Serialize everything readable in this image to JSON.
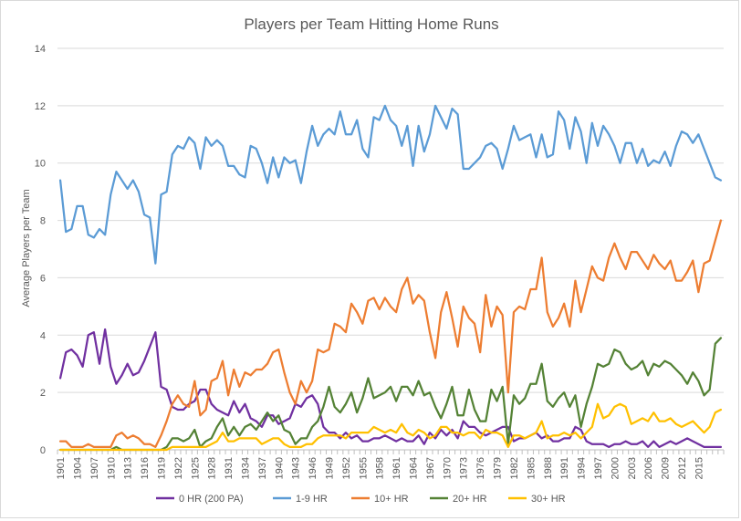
{
  "chart_data": {
    "type": "line",
    "title": "Players per Team Hitting Home Runs",
    "xlabel": "",
    "ylabel": "Average Players per Team",
    "ylim": [
      0,
      14
    ],
    "yticks": [
      0,
      2,
      4,
      6,
      8,
      10,
      12,
      14
    ],
    "x_start": 1901,
    "x_end": 2019,
    "xtick_labels": [
      "1901",
      "1904",
      "1907",
      "1910",
      "1913",
      "1916",
      "1919",
      "1922",
      "1925",
      "1928",
      "1931",
      "1934",
      "1937",
      "1940",
      "1943",
      "1946",
      "1949",
      "1952",
      "1955",
      "1958",
      "1961",
      "1964",
      "1967",
      "1970",
      "1973",
      "1976",
      "1979",
      "1982",
      "1985",
      "1988",
      "1991",
      "1994",
      "1997",
      "2000",
      "2003",
      "2006",
      "2009",
      "2012",
      "2015"
    ],
    "grid": "horizontal",
    "legend_position": "bottom",
    "series": [
      {
        "name": "0 HR (200 PA)",
        "color": "#7030a0",
        "values": [
          2.5,
          3.4,
          3.5,
          3.3,
          2.9,
          4.0,
          4.1,
          3.0,
          4.2,
          2.9,
          2.3,
          2.6,
          3.0,
          2.6,
          2.7,
          3.1,
          3.6,
          4.1,
          2.2,
          2.1,
          1.5,
          1.4,
          1.4,
          1.6,
          1.7,
          2.1,
          2.1,
          1.6,
          1.4,
          1.3,
          1.2,
          1.7,
          1.3,
          1.6,
          1.1,
          1.0,
          0.8,
          1.2,
          1.2,
          0.9,
          1.0,
          1.1,
          1.6,
          1.5,
          1.8,
          1.9,
          1.6,
          0.8,
          0.6,
          0.6,
          0.4,
          0.6,
          0.4,
          0.5,
          0.3,
          0.3,
          0.4,
          0.4,
          0.5,
          0.4,
          0.3,
          0.4,
          0.3,
          0.3,
          0.5,
          0.2,
          0.6,
          0.4,
          0.7,
          0.5,
          0.7,
          0.4,
          1.0,
          0.8,
          0.8,
          0.6,
          0.5,
          0.6,
          0.7,
          0.8,
          0.8,
          0.3,
          0.4,
          0.4,
          0.5,
          0.6,
          0.4,
          0.5,
          0.3,
          0.3,
          0.4,
          0.4,
          0.8,
          0.7,
          0.3,
          0.2,
          0.2,
          0.2,
          0.1,
          0.2,
          0.2,
          0.3,
          0.2,
          0.2,
          0.3,
          0.1,
          0.3,
          0.1,
          0.2,
          0.3,
          0.2,
          0.3,
          0.4,
          0.3,
          0.2,
          0.1,
          0.1,
          0.1,
          0.1
        ]
      },
      {
        "name": "1-9 HR",
        "color": "#5b9bd5",
        "values": [
          9.4,
          7.6,
          7.7,
          8.5,
          8.5,
          7.5,
          7.4,
          7.7,
          7.5,
          8.9,
          9.7,
          9.4,
          9.1,
          9.4,
          9.0,
          8.2,
          8.1,
          6.5,
          8.9,
          9.0,
          10.3,
          10.6,
          10.5,
          10.9,
          10.7,
          9.8,
          10.9,
          10.6,
          10.8,
          10.6,
          9.9,
          9.9,
          9.6,
          9.5,
          10.6,
          10.5,
          10.0,
          9.3,
          10.2,
          9.5,
          10.2,
          10.0,
          10.1,
          9.3,
          10.4,
          11.3,
          10.6,
          11.0,
          11.2,
          11.0,
          11.8,
          11.0,
          11.0,
          11.5,
          10.5,
          10.2,
          11.6,
          11.5,
          12.0,
          11.5,
          11.3,
          10.6,
          11.3,
          9.9,
          11.3,
          10.4,
          11.0,
          12.0,
          11.6,
          11.2,
          11.9,
          11.7,
          9.8,
          9.8,
          10.0,
          10.2,
          10.6,
          10.7,
          10.5,
          9.8,
          10.5,
          11.3,
          10.8,
          10.9,
          11.0,
          10.2,
          11.0,
          10.2,
          10.3,
          11.8,
          11.5,
          10.5,
          11.6,
          11.1,
          10.0,
          11.4,
          10.6,
          11.3,
          11.0,
          10.6,
          10.0,
          10.7,
          10.7,
          10.0,
          10.5,
          9.9,
          10.1,
          10.0,
          10.4,
          9.9,
          10.6,
          11.1,
          11.0,
          10.7,
          11.0,
          10.5,
          10.0,
          9.5,
          9.4
        ]
      },
      {
        "name": "10+ HR",
        "color": "#ed7d31",
        "values": [
          0.3,
          0.3,
          0.1,
          0.1,
          0.1,
          0.2,
          0.1,
          0.1,
          0.1,
          0.1,
          0.5,
          0.6,
          0.4,
          0.5,
          0.4,
          0.2,
          0.2,
          0.1,
          0.5,
          1.0,
          1.6,
          1.9,
          1.6,
          1.5,
          2.4,
          1.2,
          1.4,
          2.4,
          2.5,
          3.1,
          1.9,
          2.8,
          2.2,
          2.7,
          2.6,
          2.8,
          2.8,
          3.0,
          3.4,
          3.5,
          2.7,
          2.0,
          1.6,
          2.4,
          2.0,
          2.4,
          3.5,
          3.4,
          3.5,
          4.4,
          4.3,
          4.1,
          5.1,
          4.8,
          4.4,
          5.2,
          5.3,
          4.9,
          5.3,
          5.0,
          4.8,
          5.6,
          6.0,
          5.1,
          5.4,
          5.2,
          4.1,
          3.2,
          4.8,
          5.5,
          4.6,
          3.6,
          5.0,
          4.6,
          4.4,
          3.4,
          5.4,
          4.3,
          5.0,
          4.7,
          2.0,
          4.8,
          5.0,
          4.9,
          5.6,
          5.6,
          6.7,
          4.8,
          4.3,
          4.6,
          5.1,
          4.3,
          5.9,
          4.8,
          5.6,
          6.4,
          6.0,
          5.9,
          6.7,
          7.2,
          6.7,
          6.3,
          6.9,
          6.9,
          6.6,
          6.3,
          6.8,
          6.5,
          6.3,
          6.6,
          5.9,
          5.9,
          6.2,
          6.6,
          5.5,
          6.5,
          6.6,
          7.3,
          8.0
        ]
      },
      {
        "name": "20+ HR",
        "color": "#548235",
        "values": [
          0.0,
          0.0,
          0.0,
          0.0,
          0.0,
          0.0,
          0.0,
          0.0,
          0.0,
          0.0,
          0.1,
          0.0,
          0.0,
          0.0,
          0.0,
          0.0,
          0.0,
          0.0,
          0.0,
          0.1,
          0.4,
          0.4,
          0.3,
          0.4,
          0.7,
          0.1,
          0.3,
          0.4,
          0.8,
          1.1,
          0.5,
          0.8,
          0.5,
          0.8,
          0.9,
          0.7,
          1.0,
          1.3,
          1.0,
          1.2,
          0.7,
          0.6,
          0.2,
          0.4,
          0.4,
          0.8,
          1.0,
          1.5,
          2.2,
          1.5,
          1.3,
          1.6,
          2.0,
          1.3,
          1.8,
          2.5,
          1.8,
          1.9,
          2.0,
          2.2,
          1.7,
          2.2,
          2.2,
          1.9,
          2.4,
          1.9,
          2.0,
          1.5,
          1.1,
          1.6,
          2.2,
          1.2,
          1.2,
          2.1,
          1.4,
          1.0,
          1.0,
          2.1,
          1.7,
          2.2,
          0.2,
          1.9,
          1.6,
          1.8,
          2.3,
          2.3,
          3.0,
          1.7,
          1.5,
          1.8,
          2.0,
          1.5,
          1.9,
          0.8,
          1.6,
          2.2,
          3.0,
          2.9,
          3.0,
          3.5,
          3.4,
          3.0,
          2.8,
          2.9,
          3.1,
          2.6,
          3.0,
          2.9,
          3.1,
          3.0,
          2.8,
          2.6,
          2.3,
          2.7,
          2.4,
          1.9,
          2.1,
          3.7,
          3.9
        ]
      },
      {
        "name": "30+ HR",
        "color": "#ffc000",
        "values": [
          0.0,
          0.0,
          0.0,
          0.0,
          0.0,
          0.0,
          0.0,
          0.0,
          0.0,
          0.0,
          0.0,
          0.0,
          0.0,
          0.0,
          0.0,
          0.0,
          0.0,
          0.0,
          0.0,
          0.0,
          0.1,
          0.1,
          0.1,
          0.1,
          0.1,
          0.1,
          0.1,
          0.2,
          0.3,
          0.6,
          0.3,
          0.3,
          0.4,
          0.4,
          0.4,
          0.4,
          0.2,
          0.3,
          0.4,
          0.4,
          0.2,
          0.1,
          0.1,
          0.1,
          0.2,
          0.2,
          0.4,
          0.5,
          0.5,
          0.5,
          0.5,
          0.4,
          0.6,
          0.6,
          0.6,
          0.6,
          0.8,
          0.7,
          0.6,
          0.7,
          0.6,
          0.9,
          0.6,
          0.5,
          0.7,
          0.6,
          0.4,
          0.5,
          0.8,
          0.8,
          0.6,
          0.6,
          0.5,
          0.6,
          0.6,
          0.4,
          0.7,
          0.6,
          0.6,
          0.5,
          0.1,
          0.5,
          0.5,
          0.4,
          0.5,
          0.6,
          1.0,
          0.4,
          0.5,
          0.5,
          0.6,
          0.5,
          0.6,
          0.4,
          0.6,
          0.8,
          1.6,
          1.1,
          1.2,
          1.5,
          1.6,
          1.5,
          0.9,
          1.0,
          1.1,
          1.0,
          1.3,
          1.0,
          1.0,
          1.1,
          0.9,
          0.8,
          0.9,
          1.0,
          0.8,
          0.6,
          0.8,
          1.3,
          1.4
        ]
      }
    ]
  }
}
